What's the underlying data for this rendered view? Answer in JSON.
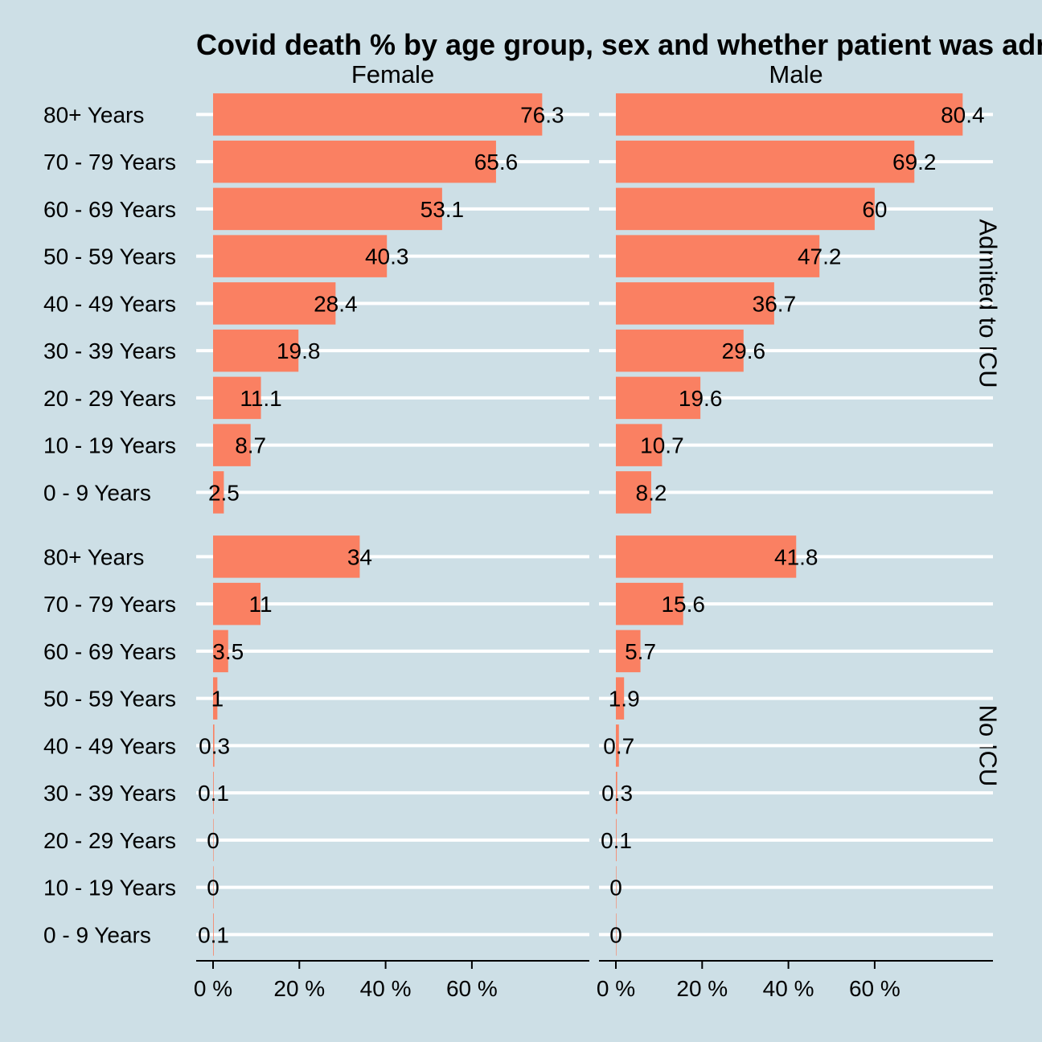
{
  "chart_data": {
    "type": "bar",
    "orientation": "horizontal",
    "title": "Covid death % by age group, sex and whether patient was admitted to ICU",
    "categories": [
      "80+ Years",
      "70 - 79 Years",
      "60 - 69 Years",
      "50 - 59 Years",
      "40 - 49 Years",
      "30 - 39 Years",
      "20 - 29 Years",
      "10 - 19 Years",
      "0 - 9 Years"
    ],
    "facet_columns": [
      "Female",
      "Male"
    ],
    "facet_rows": [
      "Admited to ICU",
      "No ICU"
    ],
    "panels": [
      {
        "row": "Admited to ICU",
        "column": "Female",
        "values": [
          76.3,
          65.6,
          53.1,
          40.3,
          28.4,
          19.8,
          11.1,
          8.7,
          2.5
        ],
        "labels": [
          "76.3",
          "65.6",
          "53.1",
          "40.3",
          "28.4",
          "19.8",
          "11.1",
          "8.7",
          "2.5"
        ]
      },
      {
        "row": "Admited to ICU",
        "column": "Male",
        "values": [
          80.4,
          69.2,
          60,
          47.2,
          36.7,
          29.6,
          19.6,
          10.7,
          8.2
        ],
        "labels": [
          "80.4",
          "69.2",
          "60",
          "47.2",
          "36.7",
          "29.6",
          "19.6",
          "10.7",
          "8.2"
        ]
      },
      {
        "row": "No ICU",
        "column": "Female",
        "values": [
          34,
          11,
          3.5,
          1,
          0.3,
          0.1,
          0,
          0,
          0.1
        ],
        "labels": [
          "34",
          "11",
          "3.5",
          "1",
          "0.3",
          "0.1",
          "0",
          "0",
          "0.1"
        ]
      },
      {
        "row": "No ICU",
        "column": "Male",
        "values": [
          41.8,
          15.6,
          5.7,
          1.9,
          0.7,
          0.3,
          0.1,
          0,
          0
        ],
        "labels": [
          "41.8",
          "15.6",
          "5.7",
          "1.9",
          "0.7",
          "0.3",
          "0.1",
          "0",
          "0"
        ]
      }
    ],
    "xlim": [
      0,
      84
    ],
    "xticks": [
      0,
      20,
      40,
      60
    ],
    "xtick_labels": [
      "0 %",
      "20 %",
      "40 %",
      "60 %"
    ],
    "xlabel": "",
    "ylabel": "",
    "grid": true,
    "legend": "none",
    "colors": {
      "bar": "#fa8062",
      "background": "#cddfe6",
      "grid": "#ffffff",
      "text": "#000000"
    }
  }
}
